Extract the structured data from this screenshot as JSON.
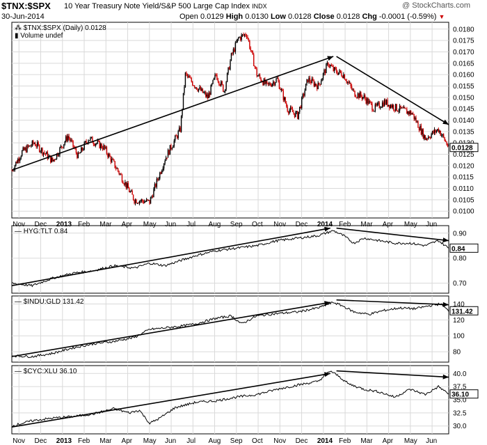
{
  "header": {
    "symbol": "$TNX:$SPX",
    "name": "10 Year Treasury Note Yield/S&P 500 Large Cap Index",
    "exchange": "INDX",
    "date": "30-Jun-2014",
    "open_label": "Open",
    "open": "0.0129",
    "high_label": "High",
    "high": "0.0130",
    "low_label": "Low",
    "low": "0.0128",
    "close_label": "Close",
    "close": "0.0128",
    "chg_label": "Chg",
    "chg": "-0.0001 (-0.59%)",
    "brand": "@ StockCharts.com"
  },
  "x_axis": {
    "labels": [
      "Nov",
      "Dec",
      "2013",
      "Feb",
      "Mar",
      "Apr",
      "May",
      "Jun",
      "Jul",
      "Aug",
      "Sep",
      "Oct",
      "Nov",
      "Dec",
      "2014",
      "Feb",
      "Mar",
      "Apr",
      "May",
      "Jun"
    ],
    "bold": [
      "2013",
      "2014"
    ]
  },
  "colors": {
    "up": "#000000",
    "down": "#cc0000",
    "grid": "#d9d9d9",
    "trend": "#000000"
  },
  "chart_data": [
    {
      "id": "main",
      "type": "candlestick",
      "legend": "$TNX:$SPX (Daily) 0.0128",
      "legend2": "Volume undef",
      "y_ticks": [
        "0.0180",
        "0.0175",
        "0.0170",
        "0.0165",
        "0.0160",
        "0.0155",
        "0.0150",
        "0.0145",
        "0.0140",
        "0.0135",
        "0.0130",
        "0.0125",
        "0.0120",
        "0.0115",
        "0.0110",
        "0.0105",
        "0.0100"
      ],
      "last_label": "0.0128",
      "ylim": [
        0.0097,
        0.0183
      ],
      "anchors": [
        [
          0,
          0.0118
        ],
        [
          10,
          0.0126
        ],
        [
          22,
          0.013
        ],
        [
          40,
          0.0122
        ],
        [
          55,
          0.0133
        ],
        [
          65,
          0.0124
        ],
        [
          75,
          0.0132
        ],
        [
          90,
          0.0128
        ],
        [
          105,
          0.0117
        ],
        [
          120,
          0.0105
        ],
        [
          135,
          0.0104
        ],
        [
          150,
          0.0123
        ],
        [
          165,
          0.0136
        ],
        [
          170,
          0.016
        ],
        [
          180,
          0.0155
        ],
        [
          192,
          0.015
        ],
        [
          200,
          0.016
        ],
        [
          208,
          0.0153
        ],
        [
          215,
          0.0168
        ],
        [
          222,
          0.0176
        ],
        [
          230,
          0.0178
        ],
        [
          240,
          0.016
        ],
        [
          250,
          0.0155
        ],
        [
          260,
          0.0158
        ],
        [
          270,
          0.0145
        ],
        [
          280,
          0.0142
        ],
        [
          290,
          0.0158
        ],
        [
          300,
          0.0155
        ],
        [
          310,
          0.0165
        ],
        [
          315,
          0.0162
        ],
        [
          325,
          0.016
        ],
        [
          335,
          0.0152
        ],
        [
          345,
          0.015
        ],
        [
          355,
          0.0145
        ],
        [
          365,
          0.0148
        ],
        [
          378,
          0.0145
        ],
        [
          392,
          0.0143
        ],
        [
          405,
          0.0132
        ],
        [
          418,
          0.0136
        ],
        [
          428,
          0.0128
        ]
      ],
      "trendlines": [
        {
          "from": [
            0,
            0.0118
          ],
          "to": [
            315,
            0.0168
          ]
        },
        {
          "from": [
            318,
            0.0168
          ],
          "to": [
            428,
            0.0138
          ]
        }
      ]
    },
    {
      "id": "hyg_tlt",
      "type": "line",
      "legend": "HYG:TLT 0.84",
      "y_ticks": [
        "0.90",
        "0.80",
        "0.70"
      ],
      "last_label": "0.84",
      "ylim": [
        0.66,
        0.93
      ],
      "anchors": [
        [
          0,
          0.7
        ],
        [
          20,
          0.69
        ],
        [
          40,
          0.72
        ],
        [
          60,
          0.74
        ],
        [
          80,
          0.75
        ],
        [
          100,
          0.77
        ],
        [
          120,
          0.76
        ],
        [
          135,
          0.78
        ],
        [
          150,
          0.77
        ],
        [
          165,
          0.79
        ],
        [
          180,
          0.81
        ],
        [
          200,
          0.83
        ],
        [
          220,
          0.84
        ],
        [
          240,
          0.85
        ],
        [
          260,
          0.87
        ],
        [
          280,
          0.88
        ],
        [
          300,
          0.89
        ],
        [
          315,
          0.91
        ],
        [
          325,
          0.89
        ],
        [
          335,
          0.86
        ],
        [
          345,
          0.88
        ],
        [
          360,
          0.87
        ],
        [
          375,
          0.86
        ],
        [
          390,
          0.86
        ],
        [
          405,
          0.85
        ],
        [
          418,
          0.87
        ],
        [
          428,
          0.84
        ]
      ],
      "trendlines": [
        {
          "from": [
            0,
            0.69
          ],
          "to": [
            312,
            0.92
          ]
        },
        {
          "from": [
            318,
            0.92
          ],
          "to": [
            428,
            0.87
          ]
        }
      ]
    },
    {
      "id": "indu_gld",
      "type": "line",
      "legend": "$INDU:GLD 131.42",
      "y_ticks": [
        "140",
        "120",
        "100",
        "80"
      ],
      "last_label": "131.42",
      "ylim": [
        67,
        150
      ],
      "anchors": [
        [
          0,
          75
        ],
        [
          20,
          74
        ],
        [
          40,
          78
        ],
        [
          60,
          85
        ],
        [
          80,
          90
        ],
        [
          100,
          93
        ],
        [
          120,
          98
        ],
        [
          135,
          108
        ],
        [
          150,
          110
        ],
        [
          165,
          112
        ],
        [
          180,
          115
        ],
        [
          200,
          122
        ],
        [
          215,
          125
        ],
        [
          225,
          115
        ],
        [
          240,
          125
        ],
        [
          260,
          128
        ],
        [
          280,
          130
        ],
        [
          300,
          135
        ],
        [
          315,
          142
        ],
        [
          325,
          137
        ],
        [
          335,
          130
        ],
        [
          350,
          127
        ],
        [
          365,
          132
        ],
        [
          380,
          135
        ],
        [
          395,
          134
        ],
        [
          410,
          138
        ],
        [
          420,
          140
        ],
        [
          428,
          131
        ]
      ],
      "trendlines": [
        {
          "from": [
            0,
            74
          ],
          "to": [
            312,
            142
          ]
        },
        {
          "from": [
            318,
            145
          ],
          "to": [
            428,
            139
          ]
        }
      ]
    },
    {
      "id": "cyc_xlu",
      "type": "line",
      "legend": "$CYC:XLU 36.10",
      "y_ticks": [
        "40.0",
        "37.5",
        "35.0",
        "32.5",
        "30.0"
      ],
      "last_label": "36.10",
      "ylim": [
        28.5,
        41.5
      ],
      "anchors": [
        [
          0,
          30.0
        ],
        [
          20,
          31.0
        ],
        [
          40,
          31.5
        ],
        [
          60,
          31.8
        ],
        [
          80,
          32.3
        ],
        [
          100,
          33.3
        ],
        [
          115,
          32.5
        ],
        [
          125,
          33.0
        ],
        [
          135,
          30.5
        ],
        [
          145,
          31.5
        ],
        [
          160,
          33.5
        ],
        [
          180,
          34.5
        ],
        [
          200,
          34.8
        ],
        [
          220,
          35.5
        ],
        [
          240,
          36.0
        ],
        [
          260,
          37.0
        ],
        [
          280,
          37.8
        ],
        [
          300,
          38.5
        ],
        [
          312,
          40.5
        ],
        [
          320,
          39.5
        ],
        [
          330,
          38.0
        ],
        [
          345,
          37.0
        ],
        [
          360,
          36.5
        ],
        [
          375,
          35.5
        ],
        [
          390,
          37.0
        ],
        [
          405,
          36.0
        ],
        [
          418,
          37.5
        ],
        [
          428,
          36.1
        ]
      ],
      "trendlines": [
        {
          "from": [
            0,
            29.8
          ],
          "to": [
            312,
            40.0
          ]
        },
        {
          "from": [
            318,
            40.5
          ],
          "to": [
            428,
            39.3
          ]
        }
      ]
    }
  ]
}
